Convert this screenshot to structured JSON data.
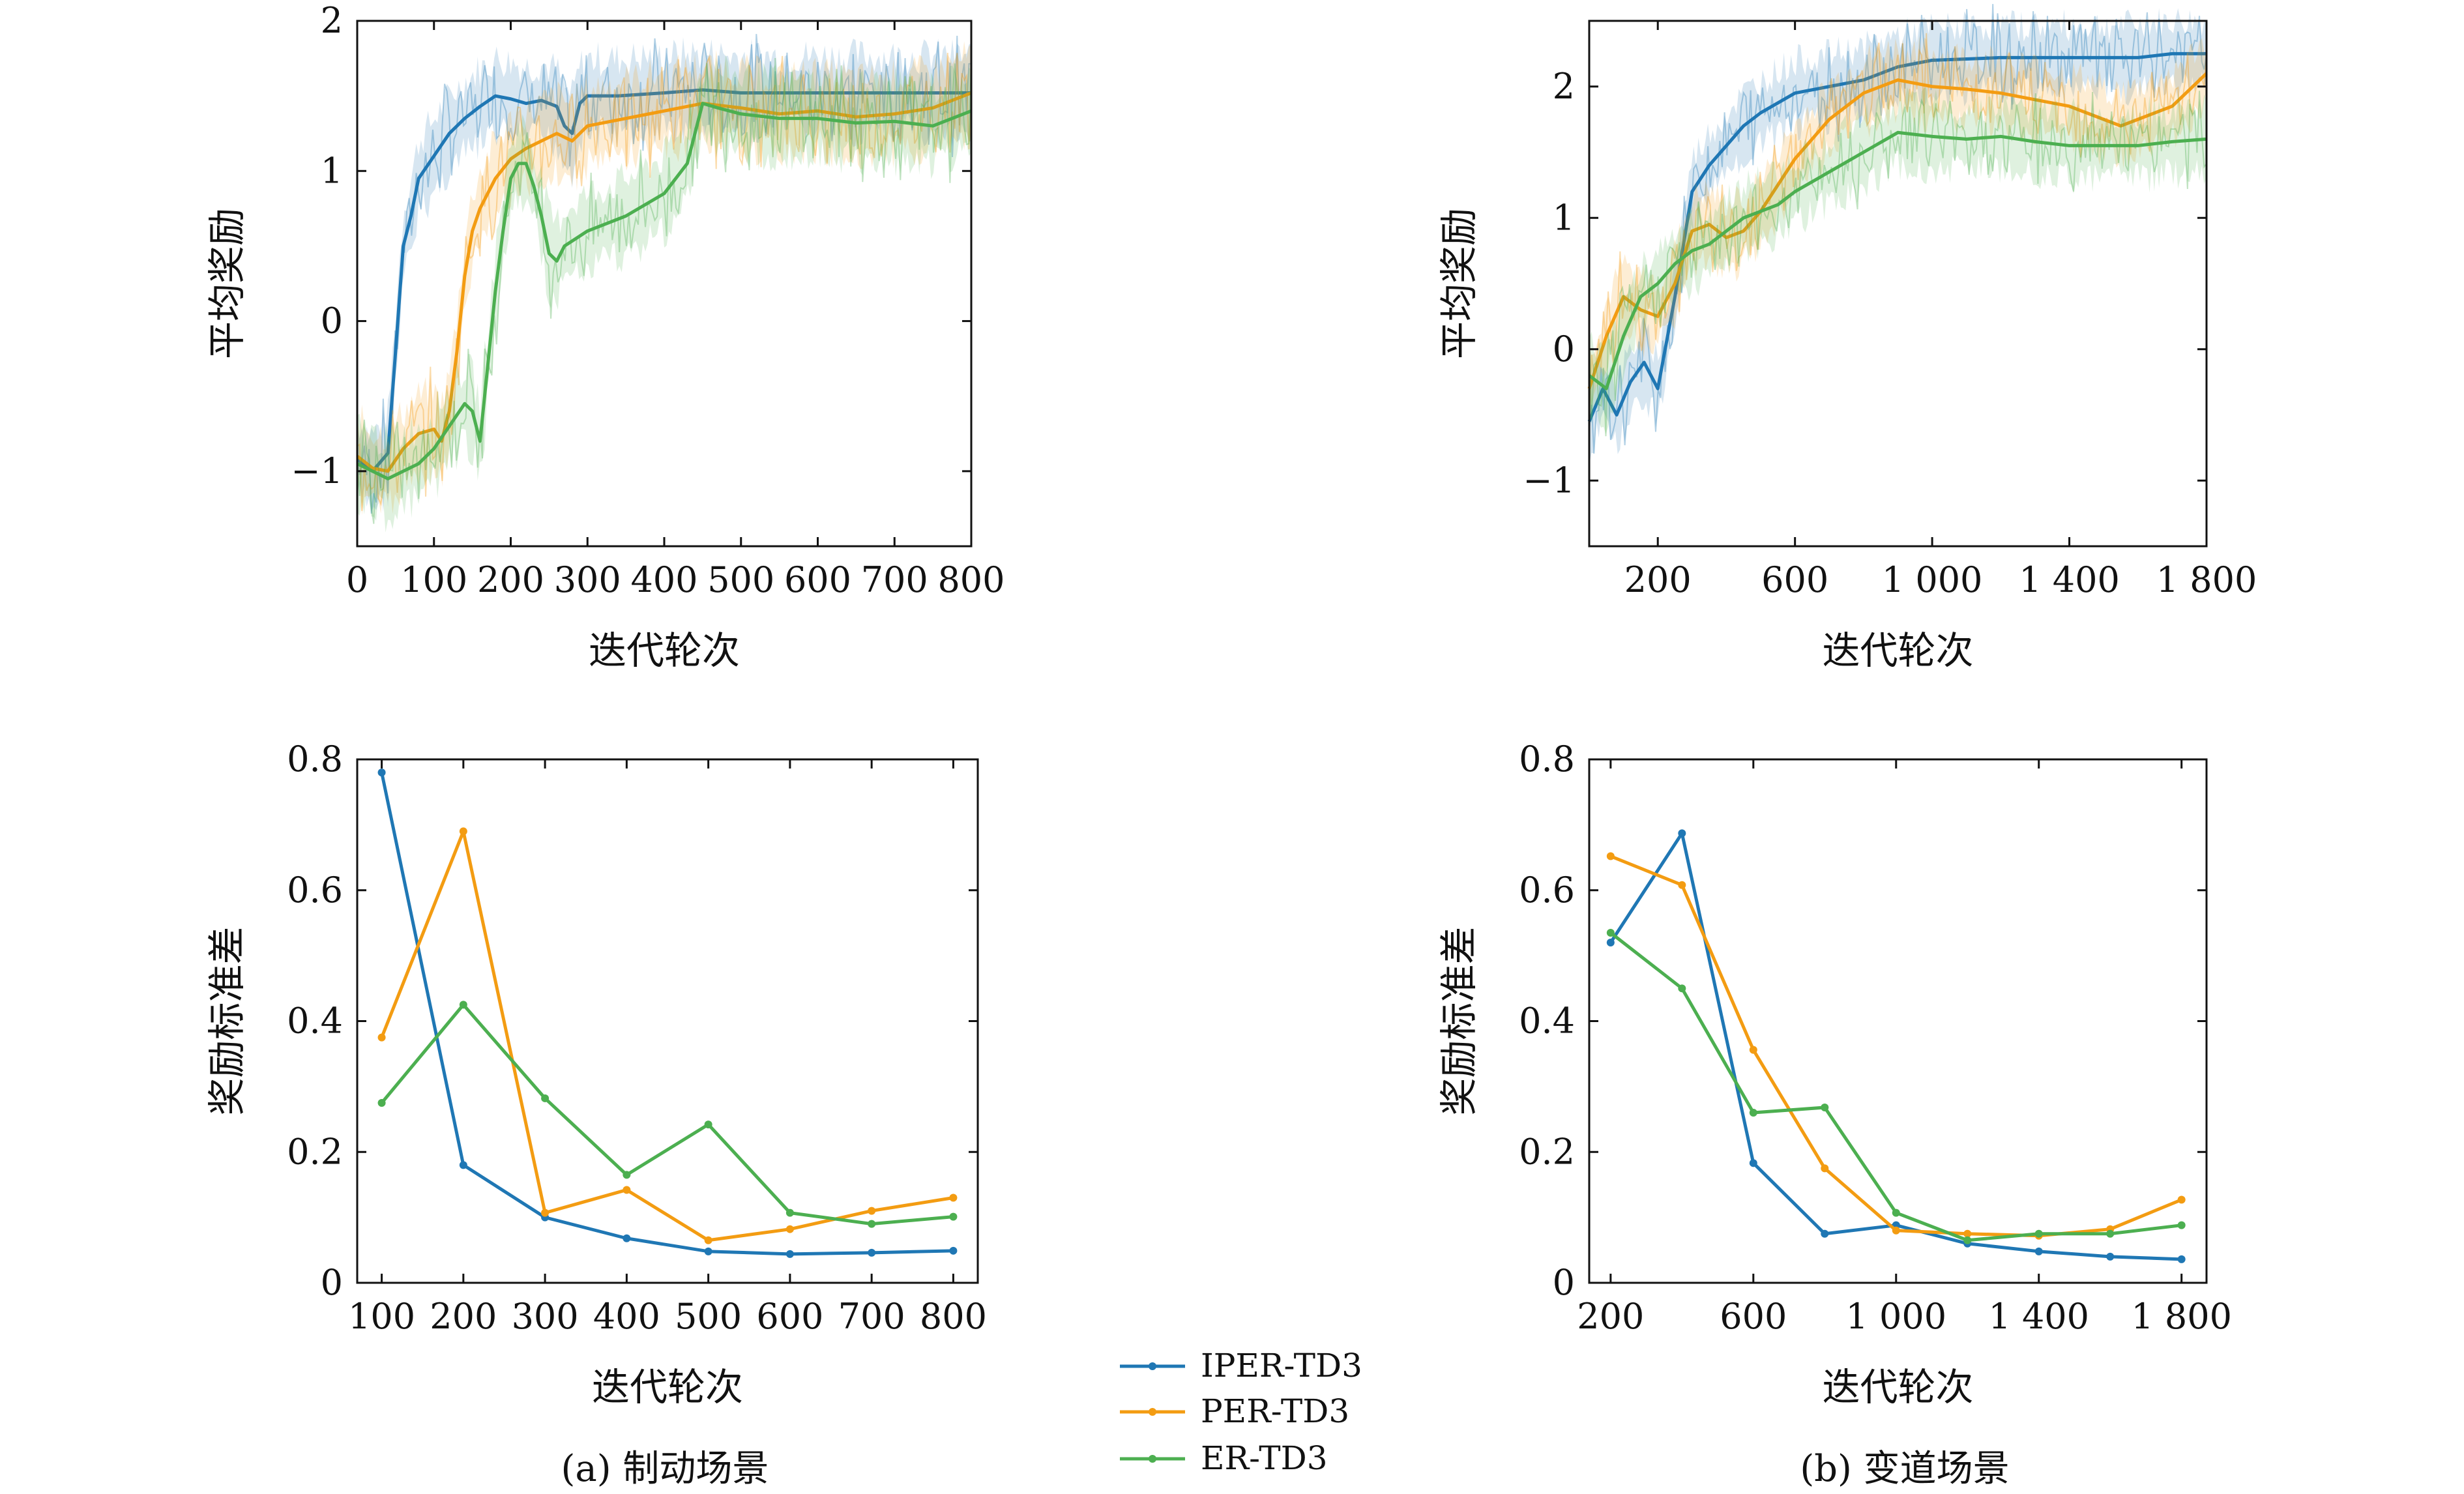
{
  "colors": {
    "IPER-TD3": "#1f77b4",
    "PER-TD3": "#f39c12",
    "ER-TD3": "#4caf50"
  },
  "legend": {
    "entries": [
      {
        "name": "IPER-TD3",
        "color": "#1f77b4"
      },
      {
        "name": "PER-TD3",
        "color": "#f39c12"
      },
      {
        "name": "ER-TD3",
        "color": "#4caf50"
      }
    ]
  },
  "captions": {
    "a": "(a) 制动场景",
    "b": "(b) 变道场景"
  },
  "chart_data": [
    {
      "id": "a_top",
      "type": "line",
      "xlabel": "迭代轮次",
      "ylabel": "平均奖励",
      "xlim": [
        0,
        800
      ],
      "ylim": [
        -1.5,
        2
      ],
      "xticks": [
        0,
        100,
        200,
        300,
        400,
        500,
        600,
        700,
        800
      ],
      "xtick_labels": [
        "0",
        "100",
        "200",
        "300",
        "400",
        "500",
        "600",
        "700",
        "800"
      ],
      "yticks": [
        -1,
        0,
        1,
        2
      ],
      "ytick_labels": [
        "−1",
        "0",
        "1",
        "2"
      ],
      "shaded_band": true,
      "series": [
        {
          "name": "IPER-TD3",
          "x": [
            0,
            20,
            40,
            50,
            60,
            70,
            80,
            100,
            120,
            140,
            160,
            180,
            200,
            220,
            240,
            260,
            270,
            280,
            290,
            300,
            340,
            400,
            450,
            500,
            600,
            700,
            800
          ],
          "y": [
            -0.92,
            -1.0,
            -0.88,
            -0.2,
            0.5,
            0.7,
            0.95,
            1.1,
            1.25,
            1.35,
            1.43,
            1.5,
            1.48,
            1.45,
            1.47,
            1.43,
            1.3,
            1.25,
            1.45,
            1.5,
            1.5,
            1.52,
            1.54,
            1.52,
            1.52,
            1.52,
            1.52
          ]
        },
        {
          "name": "PER-TD3",
          "x": [
            0,
            20,
            40,
            60,
            80,
            100,
            110,
            120,
            130,
            140,
            150,
            160,
            180,
            200,
            220,
            240,
            260,
            280,
            300,
            320,
            350,
            400,
            450,
            500,
            550,
            600,
            650,
            700,
            750,
            800
          ],
          "y": [
            -0.9,
            -0.98,
            -1.0,
            -0.85,
            -0.75,
            -0.72,
            -0.8,
            -0.6,
            -0.2,
            0.3,
            0.6,
            0.75,
            0.95,
            1.08,
            1.15,
            1.2,
            1.25,
            1.2,
            1.3,
            1.32,
            1.35,
            1.4,
            1.45,
            1.42,
            1.38,
            1.4,
            1.36,
            1.38,
            1.42,
            1.52
          ]
        },
        {
          "name": "ER-TD3",
          "x": [
            0,
            20,
            40,
            60,
            80,
            100,
            120,
            140,
            150,
            160,
            170,
            180,
            190,
            200,
            210,
            220,
            230,
            240,
            250,
            260,
            270,
            300,
            350,
            400,
            430,
            450,
            470,
            500,
            550,
            600,
            650,
            700,
            750,
            800
          ],
          "y": [
            -0.95,
            -1.0,
            -1.05,
            -1.0,
            -0.95,
            -0.85,
            -0.7,
            -0.55,
            -0.6,
            -0.8,
            -0.3,
            0.2,
            0.6,
            0.95,
            1.05,
            1.05,
            0.9,
            0.7,
            0.45,
            0.4,
            0.5,
            0.6,
            0.7,
            0.85,
            1.05,
            1.45,
            1.42,
            1.38,
            1.35,
            1.35,
            1.32,
            1.33,
            1.3,
            1.4
          ]
        }
      ]
    },
    {
      "id": "b_top",
      "type": "line",
      "xlabel": "迭代轮次",
      "ylabel": "平均奖励",
      "xlim": [
        0,
        1800
      ],
      "ylim": [
        -1.5,
        2.5
      ],
      "xticks": [
        200,
        600,
        1000,
        1400,
        1800
      ],
      "xtick_labels": [
        "200",
        "600",
        "1 000",
        "1 400",
        "1 800"
      ],
      "yticks": [
        -1,
        0,
        1,
        2
      ],
      "ytick_labels": [
        "−1",
        "0",
        "1",
        "2"
      ],
      "shaded_band": true,
      "series": [
        {
          "name": "IPER-TD3",
          "x": [
            0,
            40,
            80,
            120,
            160,
            200,
            250,
            300,
            350,
            400,
            450,
            500,
            600,
            700,
            800,
            900,
            1000,
            1200,
            1400,
            1600,
            1700,
            1800
          ],
          "y": [
            -0.55,
            -0.3,
            -0.5,
            -0.25,
            -0.1,
            -0.3,
            0.4,
            1.2,
            1.4,
            1.55,
            1.7,
            1.8,
            1.95,
            2.0,
            2.05,
            2.15,
            2.2,
            2.22,
            2.22,
            2.22,
            2.25,
            2.25
          ]
        },
        {
          "name": "PER-TD3",
          "x": [
            0,
            50,
            100,
            150,
            200,
            250,
            300,
            350,
            400,
            450,
            500,
            550,
            600,
            650,
            700,
            750,
            800,
            900,
            1000,
            1100,
            1200,
            1300,
            1400,
            1500,
            1550,
            1600,
            1700,
            1800
          ],
          "y": [
            -0.3,
            0.1,
            0.4,
            0.3,
            0.25,
            0.5,
            0.9,
            0.95,
            0.85,
            0.9,
            1.05,
            1.25,
            1.45,
            1.6,
            1.75,
            1.85,
            1.95,
            2.05,
            2.0,
            1.98,
            1.95,
            1.9,
            1.85,
            1.75,
            1.7,
            1.75,
            1.85,
            2.1
          ]
        },
        {
          "name": "ER-TD3",
          "x": [
            0,
            50,
            100,
            150,
            200,
            250,
            300,
            350,
            400,
            450,
            500,
            550,
            600,
            700,
            800,
            900,
            1000,
            1100,
            1200,
            1300,
            1400,
            1500,
            1600,
            1700,
            1800
          ],
          "y": [
            -0.2,
            -0.3,
            0.1,
            0.4,
            0.5,
            0.65,
            0.75,
            0.8,
            0.9,
            1.0,
            1.05,
            1.1,
            1.2,
            1.35,
            1.5,
            1.65,
            1.62,
            1.6,
            1.62,
            1.58,
            1.55,
            1.55,
            1.55,
            1.58,
            1.6
          ]
        }
      ]
    },
    {
      "id": "a_bottom",
      "type": "line",
      "xlabel": "迭代轮次",
      "ylabel": "奖励标准差",
      "xlim": [
        70,
        830
      ],
      "ylim": [
        0,
        0.8
      ],
      "xticks": [
        100,
        200,
        300,
        400,
        500,
        600,
        700,
        800
      ],
      "xtick_labels": [
        "100",
        "200",
        "300",
        "400",
        "500",
        "600",
        "700",
        "800"
      ],
      "yticks": [
        0,
        0.2,
        0.4,
        0.6,
        0.8
      ],
      "ytick_labels": [
        "0",
        "0.2",
        "0.4",
        "0.6",
        "0.8"
      ],
      "markers": true,
      "series": [
        {
          "name": "IPER-TD3",
          "x": [
            100,
            200,
            300,
            400,
            500,
            600,
            700,
            800
          ],
          "y": [
            0.78,
            0.18,
            0.1,
            0.068,
            0.048,
            0.044,
            0.046,
            0.049
          ]
        },
        {
          "name": "PER-TD3",
          "x": [
            100,
            200,
            300,
            400,
            500,
            600,
            700,
            800
          ],
          "y": [
            0.375,
            0.69,
            0.107,
            0.142,
            0.065,
            0.082,
            0.11,
            0.13
          ]
        },
        {
          "name": "ER-TD3",
          "x": [
            100,
            200,
            300,
            400,
            500,
            600,
            700,
            800
          ],
          "y": [
            0.275,
            0.425,
            0.282,
            0.165,
            0.242,
            0.107,
            0.09,
            0.101
          ]
        }
      ]
    },
    {
      "id": "b_bottom",
      "type": "line",
      "xlabel": "迭代轮次",
      "ylabel": "奖励标准差",
      "xlim": [
        140,
        1870
      ],
      "ylim": [
        0,
        0.8
      ],
      "xticks": [
        200,
        600,
        1000,
        1400,
        1800
      ],
      "xtick_labels": [
        "200",
        "600",
        "1 000",
        "1 400",
        "1 800"
      ],
      "yticks": [
        0,
        0.2,
        0.4,
        0.6,
        0.8
      ],
      "ytick_labels": [
        "0",
        "0.2",
        "0.4",
        "0.6",
        "0.8"
      ],
      "markers": true,
      "series": [
        {
          "name": "IPER-TD3",
          "x": [
            200,
            400,
            600,
            800,
            1000,
            1200,
            1400,
            1600,
            1800
          ],
          "y": [
            0.52,
            0.687,
            0.183,
            0.075,
            0.088,
            0.06,
            0.048,
            0.04,
            0.036
          ]
        },
        {
          "name": "PER-TD3",
          "x": [
            200,
            400,
            600,
            800,
            1000,
            1200,
            1400,
            1600,
            1800
          ],
          "y": [
            0.652,
            0.608,
            0.356,
            0.175,
            0.08,
            0.075,
            0.072,
            0.082,
            0.127
          ]
        },
        {
          "name": "ER-TD3",
          "x": [
            200,
            400,
            600,
            800,
            1000,
            1200,
            1400,
            1600,
            1800
          ],
          "y": [
            0.535,
            0.45,
            0.26,
            0.268,
            0.107,
            0.065,
            0.075,
            0.075,
            0.088
          ]
        }
      ]
    }
  ]
}
